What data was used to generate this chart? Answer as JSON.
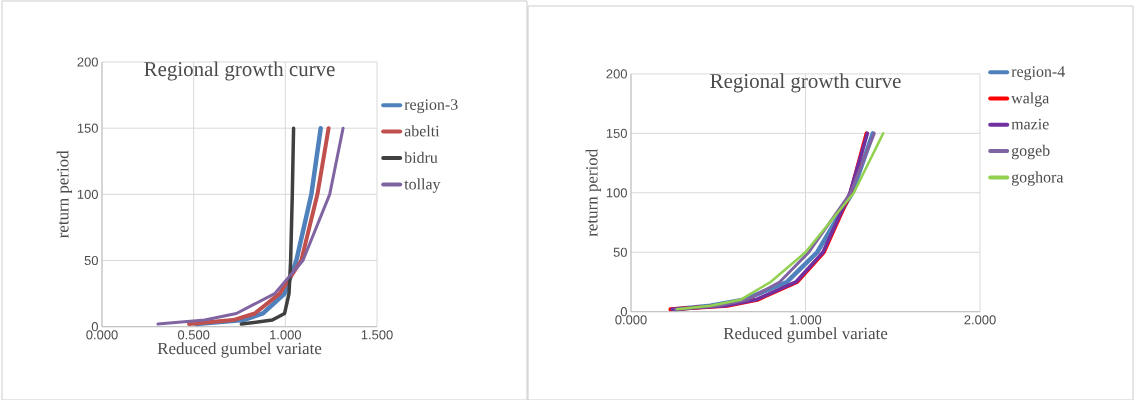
{
  "chart_data": [
    {
      "type": "line",
      "title": "Regional growth curve",
      "xlabel": "Reduced gumbel variate",
      "ylabel": "return period",
      "xlim": [
        0,
        1.5
      ],
      "xticks": [
        {
          "value": 0,
          "label": "0.000"
        },
        {
          "value": 0.5,
          "label": "0.500"
        },
        {
          "value": 1,
          "label": "1.000"
        },
        {
          "value": 1.5,
          "label": "1.500"
        }
      ],
      "ylim": [
        0,
        200
      ],
      "yticks": [
        0,
        50,
        100,
        150,
        200
      ],
      "grid": true,
      "legend": "right",
      "marker": "none",
      "series": [
        {
          "name": "region-3",
          "color": "#4f81bd",
          "x": [
            0.515,
            0.77,
            0.878,
            0.996,
            1.06,
            1.142,
            1.193
          ],
          "values": [
            2,
            5,
            10,
            25,
            50,
            100,
            150
          ]
        },
        {
          "name": "abelti",
          "color": "#c0504d",
          "x": [
            0.475,
            0.715,
            0.833,
            0.969,
            1.087,
            1.175,
            1.236
          ],
          "values": [
            2,
            5,
            10,
            25,
            50,
            100,
            150
          ]
        },
        {
          "name": "bidru",
          "color": "#404040",
          "x": [
            0.76,
            0.929,
            0.996,
            1.02,
            1.029,
            1.038,
            1.045
          ],
          "values": [
            2,
            5,
            10,
            25,
            50,
            100,
            150
          ]
        },
        {
          "name": "tollay",
          "color": "#8064a2",
          "x": [
            0.305,
            0.56,
            0.733,
            0.942,
            1.096,
            1.242,
            1.315
          ],
          "values": [
            2,
            5,
            10,
            25,
            50,
            100,
            150
          ]
        }
      ]
    },
    {
      "type": "line",
      "title": "Regional growth curve",
      "xlabel": "Reduced gumbel variate",
      "ylabel": "return period",
      "xlim": [
        0,
        2
      ],
      "xticks": [
        {
          "value": 0,
          "label": "0.000"
        },
        {
          "value": 1,
          "label": "1.000"
        },
        {
          "value": 2,
          "label": "2.000"
        }
      ],
      "ylim": [
        0,
        200
      ],
      "yticks": [
        0,
        50,
        100,
        150,
        200
      ],
      "grid": true,
      "legend": "right",
      "marker": "none",
      "series": [
        {
          "name": "region-4",
          "color": "#4f81bd",
          "x": [
            0.254,
            0.455,
            0.646,
            0.894,
            1.067,
            1.268,
            1.386
          ],
          "values": [
            2,
            5,
            10,
            25,
            50,
            100,
            150
          ]
        },
        {
          "name": "walga",
          "color": "#ff0000",
          "x": [
            0.226,
            0.551,
            0.723,
            0.952,
            1.105,
            1.258,
            1.35
          ],
          "values": [
            2,
            5,
            10,
            25,
            50,
            100,
            150
          ]
        },
        {
          "name": "mazie",
          "color": "#7030a0",
          "x": [
            0.235,
            0.54,
            0.715,
            0.945,
            1.1,
            1.255,
            1.355
          ],
          "values": [
            2,
            5,
            10,
            25,
            50,
            100,
            150
          ]
        },
        {
          "name": "gogeb",
          "color": "#8064a2",
          "x": [
            0.254,
            0.5,
            0.665,
            0.852,
            1.019,
            1.258,
            1.394
          ],
          "values": [
            2,
            5,
            10,
            25,
            50,
            100,
            150
          ]
        },
        {
          "name": "goghora",
          "color": "#92d050",
          "x": [
            0.264,
            0.455,
            0.627,
            0.8,
            1.0,
            1.277,
            1.445
          ],
          "values": [
            2,
            5,
            10,
            25,
            50,
            100,
            150
          ]
        }
      ]
    }
  ]
}
